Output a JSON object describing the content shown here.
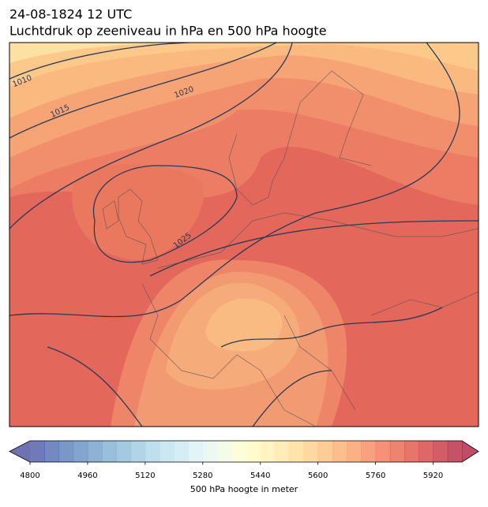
{
  "map": {
    "title_line1": "24-08-1824 12 UTC",
    "title_line2": "Luchtdruk op zeeniveau in hPa en 500 hPa hoogte",
    "isobar_labels": [
      1010,
      1015,
      1020,
      1025
    ],
    "colorbar": {
      "label": "500 hPa hoogte in meter",
      "lim": [
        4800,
        6000
      ],
      "step": 40,
      "ticks": [
        4800,
        4960,
        5120,
        5280,
        5440,
        5600,
        5760,
        5920
      ],
      "extend": "both",
      "colormap": [
        "#313695",
        "#4575b4",
        "#74add1",
        "#abd9e9",
        "#e0f3f8",
        "#ffffbf",
        "#fee090",
        "#fdae61",
        "#f46d43",
        "#d73027",
        "#a50026"
      ],
      "opacity": 0.7
    }
  }
}
